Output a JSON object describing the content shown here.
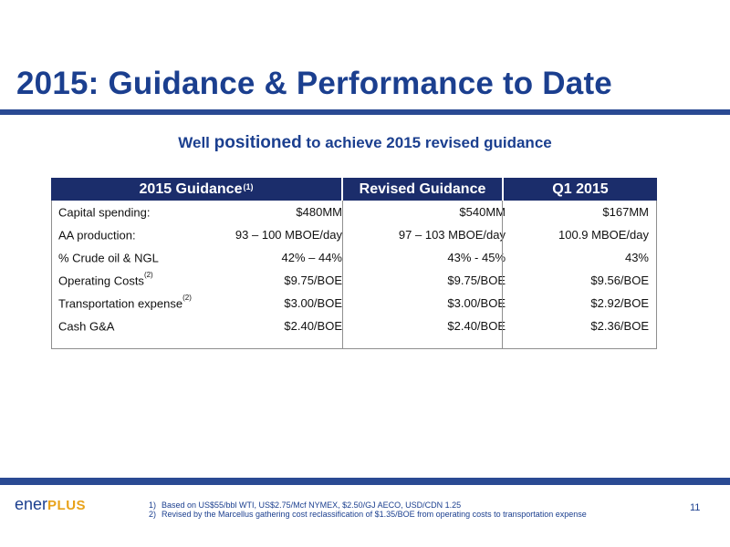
{
  "title": "2015: Guidance & Performance to Date",
  "subtitle": {
    "pre": "Well ",
    "emph": "positioned",
    "post": " to achieve 2015 revised guidance"
  },
  "table": {
    "headers": {
      "guidance": "2015 Guidance",
      "guidance_note": "(1)",
      "revised": "Revised Guidance",
      "q1": "Q1 2015"
    },
    "rows": [
      {
        "label": "Capital spending:",
        "note": "",
        "guidance": "$480MM",
        "revised": "$540MM",
        "q1": "$167MM"
      },
      {
        "label": "AA production:",
        "note": "",
        "guidance": "93 – 100 MBOE/day",
        "revised": "97 – 103 MBOE/day",
        "q1": "100.9 MBOE/day"
      },
      {
        "label": "% Crude oil & NGL",
        "note": "",
        "guidance": "42% – 44%",
        "revised": "43%  - 45%",
        "q1": "43%"
      },
      {
        "label": "Operating Costs",
        "note": "(2)",
        "guidance": "$9.75/BOE",
        "revised": "$9.75/BOE",
        "q1": "$9.56/BOE"
      },
      {
        "label": "Transportation expense",
        "note": "(2)",
        "guidance": "$3.00/BOE",
        "revised": "$3.00/BOE",
        "q1": "$2.92/BOE"
      },
      {
        "label": "Cash G&A",
        "note": "",
        "guidance": "$2.40/BOE",
        "revised": "$2.40/BOE",
        "q1": "$2.36/BOE"
      }
    ]
  },
  "footer": {
    "logo_a": "ener",
    "logo_b": "PLUS",
    "notes": [
      {
        "num": "1)",
        "text": "Based on US$55/bbl WTI, US$2.75/Mcf NYMEX, $2.50/GJ AECO, USD/CDN 1.25"
      },
      {
        "num": "2)",
        "text": "Revised by the Marcellus gathering cost reclassification of $1.35/BOE from operating costs to transportation expense"
      }
    ],
    "page_number": "11"
  },
  "colors": {
    "brand_blue": "#1b3f8f",
    "header_navy": "#1b2d6b",
    "bar_blue": "#2a4a93",
    "logo_orange": "#e8a21a"
  }
}
